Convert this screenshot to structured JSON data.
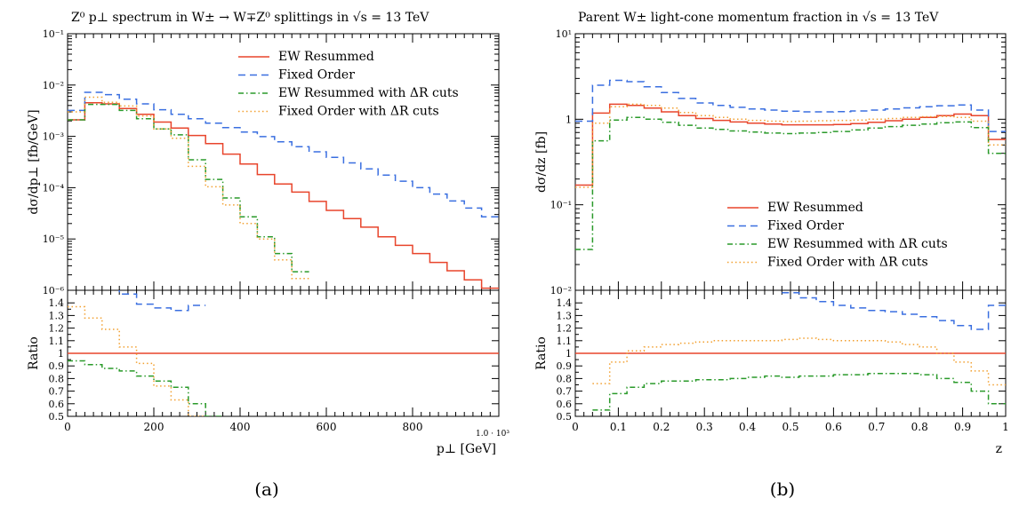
{
  "chart_data": [
    {
      "type": "line",
      "title": "Z⁰ p⊥ spectrum in W± → W∓Z⁰ splittings in √s = 13 TeV",
      "ylabel": "dσ/dp⊥ [fb/GeV]",
      "xlabel": "p⊥ [GeV]",
      "ratio_ylabel": "Ratio",
      "sublabel": "(a)",
      "x_scale_note": "1.0 · 10³",
      "xlim": [
        0,
        1000
      ],
      "ylim": [
        1e-06,
        0.1
      ],
      "y_scale": "log",
      "ratio_ylim": [
        0.5,
        1.5
      ],
      "x_ticks": [
        "0",
        "200",
        "400",
        "600",
        "800"
      ],
      "y_ticks": [
        "10⁻⁶",
        "10⁻⁵",
        "10⁻⁴",
        "10⁻³",
        "10⁻²",
        "10⁻¹"
      ],
      "ratio_ticks": [
        "0.5",
        "0.6",
        "0.7",
        "0.8",
        "0.9",
        "1",
        "1.1",
        "1.2",
        "1.3",
        "1.4"
      ],
      "legend_position": "top-right",
      "x_edges": [
        0,
        40,
        80,
        120,
        160,
        200,
        240,
        280,
        320,
        360,
        400,
        440,
        480,
        520,
        560,
        600,
        640,
        680,
        720,
        760,
        800,
        840,
        880,
        920,
        960,
        1000
      ],
      "series": [
        {
          "name": "EW Resummed",
          "color": "#e8452c",
          "dash": "",
          "values": [
            0.0021,
            0.0045,
            0.0043,
            0.0035,
            0.0027,
            0.0019,
            0.00145,
            0.00104,
            0.00072,
            0.00045,
            0.00029,
            0.00018,
            0.000118,
            8.2e-05,
            5.4e-05,
            3.6e-05,
            2.5e-05,
            1.7e-05,
            1.1e-05,
            7.5e-06,
            5.2e-06,
            3.5e-06,
            2.4e-06,
            1.6e-06,
            1.1e-06
          ]
        },
        {
          "name": "Fixed Order",
          "color": "#3a6fe0",
          "dash": "8,5",
          "values": [
            0.0032,
            0.0072,
            0.0065,
            0.0053,
            0.0043,
            0.0033,
            0.0027,
            0.0022,
            0.0018,
            0.00148,
            0.00121,
            0.00099,
            0.00078,
            0.00063,
            0.0005,
            0.00039,
            0.000304,
            0.000232,
            0.000176,
            0.000134,
            0.0001,
            7.5e-05,
            5.5e-05,
            4e-05,
            2.7e-05
          ]
        },
        {
          "name": "EW Resummed with ΔR cuts",
          "color": "#2a9a2a",
          "dash": "6,3,1.5,3",
          "values": [
            0.0021,
            0.0042,
            0.0042,
            0.0032,
            0.0022,
            0.0014,
            0.00107,
            0.00035,
            0.000145,
            6.3e-05,
            2.7e-05,
            1.1e-05,
            5.2e-06,
            2.3e-06,
            null,
            null,
            null,
            null,
            null,
            null,
            null,
            null,
            null,
            null,
            null
          ]
        },
        {
          "name": "Fixed Order with ΔR cuts",
          "color": "#f2a030",
          "dash": "1.5,3",
          "values": [
            0.003,
            0.0058,
            0.0046,
            0.0039,
            0.0025,
            0.0014,
            0.00092,
            0.00026,
            0.000104,
            4.6e-05,
            2e-05,
            1e-05,
            3.9e-06,
            1.7e-06,
            null,
            null,
            null,
            null,
            null,
            null,
            null,
            null,
            null,
            null,
            null
          ]
        }
      ],
      "ratio_series": [
        {
          "name": "EW Resummed",
          "color": "#e8452c",
          "dash": "",
          "values": [
            1,
            1,
            1,
            1,
            1,
            1,
            1,
            1,
            1,
            1,
            1,
            1,
            1,
            1,
            1,
            1,
            1,
            1,
            1,
            1,
            1,
            1,
            1,
            1,
            1
          ]
        },
        {
          "name": "Fixed Order",
          "color": "#3a6fe0",
          "dash": "8,5",
          "values": [
            1.52,
            1.6,
            1.51,
            1.47,
            1.39,
            1.36,
            1.34,
            1.38,
            null,
            null,
            null,
            null,
            null,
            null,
            null,
            null,
            null,
            null,
            null,
            null,
            null,
            null,
            null,
            null,
            null
          ]
        },
        {
          "name": "EW Resummed with ΔR cuts",
          "color": "#2a9a2a",
          "dash": "6,3,1.5,3",
          "values": [
            0.94,
            0.91,
            0.88,
            0.86,
            0.82,
            0.78,
            0.73,
            0.6,
            0.5,
            null,
            null,
            null,
            null,
            null,
            null,
            null,
            null,
            null,
            null,
            null,
            null,
            null,
            null,
            null,
            null
          ]
        },
        {
          "name": "Fixed Order with ΔR cuts",
          "color": "#f2a030",
          "dash": "1.5,3",
          "values": [
            1.37,
            1.28,
            1.19,
            1.05,
            0.92,
            0.74,
            0.63,
            0.5,
            null,
            null,
            null,
            null,
            null,
            null,
            null,
            null,
            null,
            null,
            null,
            null,
            null,
            null,
            null,
            null,
            null
          ]
        }
      ]
    },
    {
      "type": "line",
      "title": "Parent W± light-cone momentum fraction in √s = 13 TeV",
      "ylabel": "dσ/dz [fb]",
      "xlabel": "z",
      "ratio_ylabel": "Ratio",
      "sublabel": "(b)",
      "xlim": [
        0,
        1
      ],
      "ylim": [
        0.01,
        10
      ],
      "y_scale": "log",
      "ratio_ylim": [
        0.5,
        1.5
      ],
      "x_ticks": [
        "0",
        "0.1",
        "0.2",
        "0.3",
        "0.4",
        "0.5",
        "0.6",
        "0.7",
        "0.8",
        "0.9",
        "1"
      ],
      "y_ticks": [
        "10⁻²",
        "10⁻¹",
        "1",
        "10¹"
      ],
      "ratio_ticks": [
        "0.5",
        "0.6",
        "0.7",
        "0.8",
        "0.9",
        "1",
        "1.1",
        "1.2",
        "1.3",
        "1.4"
      ],
      "legend_position": "bottom-right",
      "x_edges": [
        0,
        0.04,
        0.08,
        0.12,
        0.16,
        0.2,
        0.24,
        0.28,
        0.32,
        0.36,
        0.4,
        0.44,
        0.48,
        0.52,
        0.56,
        0.6,
        0.64,
        0.68,
        0.72,
        0.76,
        0.8,
        0.84,
        0.88,
        0.92,
        0.96,
        1.0
      ],
      "series": [
        {
          "name": "EW Resummed",
          "color": "#e8452c",
          "dash": "",
          "values": [
            0.17,
            1.18,
            1.5,
            1.45,
            1.35,
            1.22,
            1.1,
            1.02,
            0.97,
            0.93,
            0.9,
            0.88,
            0.86,
            0.86,
            0.86,
            0.87,
            0.89,
            0.92,
            0.96,
            1.0,
            1.05,
            1.1,
            1.15,
            1.1,
            0.58
          ]
        },
        {
          "name": "Fixed Order",
          "color": "#3a6fe0",
          "dash": "8,5",
          "values": [
            0.95,
            2.5,
            2.85,
            2.75,
            2.4,
            2.05,
            1.75,
            1.55,
            1.45,
            1.38,
            1.32,
            1.28,
            1.24,
            1.22,
            1.22,
            1.23,
            1.25,
            1.28,
            1.32,
            1.36,
            1.4,
            1.44,
            1.47,
            1.28,
            0.72
          ]
        },
        {
          "name": "EW Resummed with ΔR cuts",
          "color": "#2a9a2a",
          "dash": "6,3,1.5,3",
          "values": [
            0.03,
            0.56,
            0.98,
            1.05,
            1.0,
            0.92,
            0.85,
            0.79,
            0.76,
            0.73,
            0.71,
            0.69,
            0.68,
            0.69,
            0.7,
            0.72,
            0.75,
            0.79,
            0.82,
            0.85,
            0.88,
            0.91,
            0.93,
            0.8,
            0.4
          ]
        },
        {
          "name": "Fixed Order with ΔR cuts",
          "color": "#f2a030",
          "dash": "1.5,3",
          "values": [
            0.16,
            0.9,
            1.4,
            1.5,
            1.45,
            1.35,
            1.2,
            1.1,
            1.05,
            1.0,
            0.97,
            0.95,
            0.94,
            0.95,
            0.96,
            0.97,
            0.98,
            1.0,
            1.02,
            1.05,
            1.07,
            1.08,
            1.05,
            0.95,
            0.5
          ]
        }
      ],
      "ratio_series": [
        {
          "name": "EW Resummed",
          "color": "#e8452c",
          "dash": "",
          "values": [
            1,
            1,
            1,
            1,
            1,
            1,
            1,
            1,
            1,
            1,
            1,
            1,
            1,
            1,
            1,
            1,
            1,
            1,
            1,
            1,
            1,
            1,
            1,
            1,
            1
          ]
        },
        {
          "name": "Fixed Order",
          "color": "#3a6fe0",
          "dash": "8,5",
          "values": [
            null,
            null,
            null,
            null,
            null,
            null,
            null,
            null,
            null,
            null,
            null,
            null,
            1.48,
            1.44,
            1.41,
            1.38,
            1.36,
            1.34,
            1.33,
            1.31,
            1.29,
            1.26,
            1.22,
            1.19,
            1.38
          ]
        },
        {
          "name": "EW Resummed with ΔR cuts",
          "color": "#2a9a2a",
          "dash": "6,3,1.5,3",
          "values": [
            null,
            0.55,
            0.68,
            0.73,
            0.76,
            0.78,
            0.78,
            0.79,
            0.79,
            0.8,
            0.81,
            0.82,
            0.81,
            0.82,
            0.82,
            0.83,
            0.83,
            0.84,
            0.84,
            0.84,
            0.83,
            0.8,
            0.77,
            0.7,
            0.6
          ]
        },
        {
          "name": "Fixed Order with ΔR cuts",
          "color": "#f2a030",
          "dash": "1.5,3",
          "values": [
            null,
            0.76,
            0.93,
            1.02,
            1.05,
            1.07,
            1.08,
            1.09,
            1.1,
            1.1,
            1.1,
            1.1,
            1.11,
            1.12,
            1.11,
            1.1,
            1.1,
            1.1,
            1.09,
            1.07,
            1.05,
            1.0,
            0.93,
            0.86,
            0.75
          ]
        }
      ]
    }
  ]
}
